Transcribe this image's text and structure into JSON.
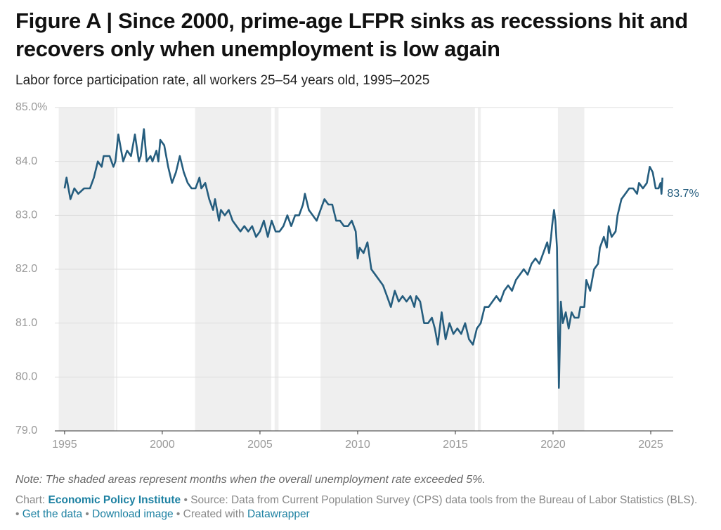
{
  "header": {
    "title": "Figure A | Since 2000, prime-age LFPR sinks as recessions hit and recovers only when unemployment is low again",
    "subtitle": "Labor force participation rate, all workers 25–54 years old, 1995–2025"
  },
  "chart_data": {
    "type": "line",
    "x": [
      1995.0,
      1995.1,
      1995.3,
      1995.5,
      1995.7,
      1996.0,
      1996.3,
      1996.5,
      1996.7,
      1996.9,
      1997.0,
      1997.3,
      1997.5,
      1997.6,
      1997.75,
      1997.9,
      1998.0,
      1998.2,
      1998.4,
      1998.6,
      1998.8,
      1998.9,
      1999.06,
      1999.2,
      1999.4,
      1999.5,
      1999.7,
      1999.8,
      1999.9,
      2000.1,
      2000.2,
      2000.3,
      2000.5,
      2000.7,
      2000.9,
      2001.1,
      2001.3,
      2001.5,
      2001.7,
      2001.9,
      2002.0,
      2002.2,
      2002.4,
      2002.6,
      2002.7,
      2002.9,
      2003.0,
      2003.2,
      2003.4,
      2003.6,
      2003.8,
      2004.0,
      2004.2,
      2004.4,
      2004.6,
      2004.8,
      2005.0,
      2005.2,
      2005.4,
      2005.6,
      2005.8,
      2006.0,
      2006.2,
      2006.4,
      2006.6,
      2006.8,
      2007.0,
      2007.2,
      2007.3,
      2007.5,
      2007.7,
      2007.9,
      2008.1,
      2008.3,
      2008.5,
      2008.7,
      2008.9,
      2009.1,
      2009.3,
      2009.5,
      2009.7,
      2009.9,
      2010.0,
      2010.1,
      2010.3,
      2010.5,
      2010.7,
      2010.9,
      2011.1,
      2011.3,
      2011.5,
      2011.7,
      2011.9,
      2012.1,
      2012.3,
      2012.5,
      2012.7,
      2012.9,
      2013.0,
      2013.2,
      2013.4,
      2013.6,
      2013.8,
      2013.95,
      2014.1,
      2014.3,
      2014.5,
      2014.7,
      2014.9,
      2015.1,
      2015.3,
      2015.5,
      2015.7,
      2015.9,
      2016.1,
      2016.3,
      2016.5,
      2016.7,
      2016.9,
      2017.1,
      2017.3,
      2017.5,
      2017.7,
      2017.9,
      2018.1,
      2018.3,
      2018.5,
      2018.7,
      2018.9,
      2019.1,
      2019.3,
      2019.5,
      2019.7,
      2019.8,
      2019.9,
      2019.95,
      2020.05,
      2020.12,
      2020.2,
      2020.3,
      2020.4,
      2020.5,
      2020.65,
      2020.8,
      2020.95,
      2021.1,
      2021.3,
      2021.4,
      2021.6,
      2021.7,
      2021.9,
      2022.1,
      2022.3,
      2022.4,
      2022.6,
      2022.75,
      2022.85,
      2023.0,
      2023.2,
      2023.3,
      2023.5,
      2023.7,
      2023.9,
      2024.1,
      2024.3,
      2024.4,
      2024.6,
      2024.8,
      2024.95,
      2025.1,
      2025.25,
      2025.4,
      2025.5,
      2025.55,
      2025.6
    ],
    "series": [
      {
        "color": "#255d7e",
        "values": [
          83.5,
          83.7,
          83.3,
          83.5,
          83.4,
          83.5,
          83.5,
          83.7,
          84.0,
          83.9,
          84.1,
          84.1,
          83.9,
          84.0,
          84.5,
          84.2,
          84.0,
          84.2,
          84.1,
          84.5,
          84.0,
          84.1,
          84.6,
          84.0,
          84.1,
          84.0,
          84.2,
          84.0,
          84.4,
          84.3,
          84.1,
          83.9,
          83.6,
          83.8,
          84.1,
          83.8,
          83.6,
          83.5,
          83.5,
          83.7,
          83.5,
          83.6,
          83.3,
          83.1,
          83.3,
          82.9,
          83.1,
          83.0,
          83.1,
          82.9,
          82.8,
          82.7,
          82.8,
          82.7,
          82.8,
          82.6,
          82.7,
          82.9,
          82.6,
          82.9,
          82.7,
          82.7,
          82.8,
          83.0,
          82.8,
          83.0,
          83.0,
          83.2,
          83.4,
          83.1,
          83.0,
          82.9,
          83.1,
          83.3,
          83.2,
          83.2,
          82.9,
          82.9,
          82.8,
          82.8,
          82.9,
          82.7,
          82.2,
          82.4,
          82.3,
          82.5,
          82.0,
          81.9,
          81.8,
          81.7,
          81.5,
          81.3,
          81.6,
          81.4,
          81.5,
          81.4,
          81.5,
          81.3,
          81.5,
          81.4,
          81.0,
          81.0,
          81.1,
          80.9,
          80.6,
          81.2,
          80.7,
          81.0,
          80.8,
          80.9,
          80.8,
          81.0,
          80.7,
          80.6,
          80.9,
          81.0,
          81.3,
          81.3,
          81.4,
          81.5,
          81.4,
          81.6,
          81.7,
          81.6,
          81.8,
          81.9,
          82.0,
          81.9,
          82.1,
          82.2,
          82.1,
          82.3,
          82.5,
          82.3,
          82.6,
          82.8,
          83.1,
          82.9,
          82.4,
          79.8,
          81.4,
          81.0,
          81.2,
          80.9,
          81.2,
          81.1,
          81.1,
          81.3,
          81.3,
          81.8,
          81.6,
          82.0,
          82.1,
          82.4,
          82.6,
          82.4,
          82.8,
          82.6,
          82.7,
          83.0,
          83.3,
          83.4,
          83.5,
          83.5,
          83.4,
          83.6,
          83.5,
          83.6,
          83.9,
          83.8,
          83.5,
          83.5,
          83.6,
          83.4,
          83.7
        ],
        "value_labels": [
          null,
          null,
          null,
          null,
          null,
          null,
          null,
          null,
          null,
          null,
          null,
          null,
          null,
          null,
          null,
          null,
          null,
          null,
          null,
          null,
          null,
          null,
          null,
          null,
          null,
          null,
          null,
          null,
          null,
          null,
          null,
          null,
          null,
          null,
          null,
          null,
          null,
          null,
          null,
          null,
          null,
          null,
          null,
          null,
          null,
          null,
          null,
          null,
          null,
          null,
          null,
          null,
          null,
          null,
          null,
          null,
          null,
          null,
          null,
          null,
          null,
          null,
          null,
          null,
          null,
          null,
          null,
          null,
          null,
          null,
          null,
          null,
          null,
          null,
          null,
          null,
          null,
          null,
          null,
          null,
          null,
          null,
          null,
          null,
          null,
          null,
          null,
          null,
          null,
          null,
          null,
          null,
          null,
          null,
          null,
          null,
          null,
          null,
          null,
          null,
          null,
          null,
          null,
          null,
          null,
          null,
          null,
          null,
          null,
          null,
          null,
          null,
          null,
          null,
          null,
          null,
          null,
          null,
          null,
          null,
          null,
          null,
          null,
          null,
          null,
          null,
          null,
          null,
          null,
          null,
          null,
          null,
          null,
          null,
          null,
          null,
          null,
          null,
          null,
          null,
          null,
          null,
          null,
          null,
          null,
          null,
          null,
          null,
          null,
          null,
          null,
          null,
          null,
          null,
          null,
          null,
          null,
          null,
          null,
          null,
          null,
          null,
          null,
          null,
          null,
          null,
          null,
          null,
          null,
          null,
          null,
          null,
          null,
          "83.7%"
        ]
      }
    ],
    "xlim": [
      1994.5,
      2026.15
    ],
    "xticks": [
      1995,
      2000,
      2005,
      2010,
      2015,
      2020,
      2025
    ],
    "ylim": [
      79,
      85
    ],
    "yticks": [
      {
        "value": 79,
        "label": "79.0"
      },
      {
        "value": 80,
        "label": "80.0"
      },
      {
        "value": 81,
        "label": "81.0"
      },
      {
        "value": 82,
        "label": "82.0"
      },
      {
        "value": 83,
        "label": "83.0"
      },
      {
        "value": 84,
        "label": "84.0"
      },
      {
        "value": 85,
        "label": "85.0%"
      }
    ],
    "grid": true,
    "shaded_periods": [
      [
        1994.7,
        1997.55
      ],
      [
        1997.62,
        1997.7
      ],
      [
        2001.68,
        2005.58
      ],
      [
        2005.75,
        2005.95
      ],
      [
        2008.1,
        2016.0
      ],
      [
        2016.15,
        2016.3
      ],
      [
        2020.25,
        2021.6
      ]
    ],
    "shade_color": "#efefef"
  },
  "note": "Note: The shaded areas represent months when the overall unemployment rate exceeded 5%.",
  "footer": {
    "chart_label": "Chart:",
    "publisher": "Economic Policy Institute",
    "separator": "•",
    "source": "Source: Data from Current Population Survey (CPS) data tools from the Bureau of Labor Statistics (BLS).",
    "links": [
      "Get the data",
      "Download image"
    ],
    "created_with": "Created with",
    "tool": "Datawrapper"
  }
}
